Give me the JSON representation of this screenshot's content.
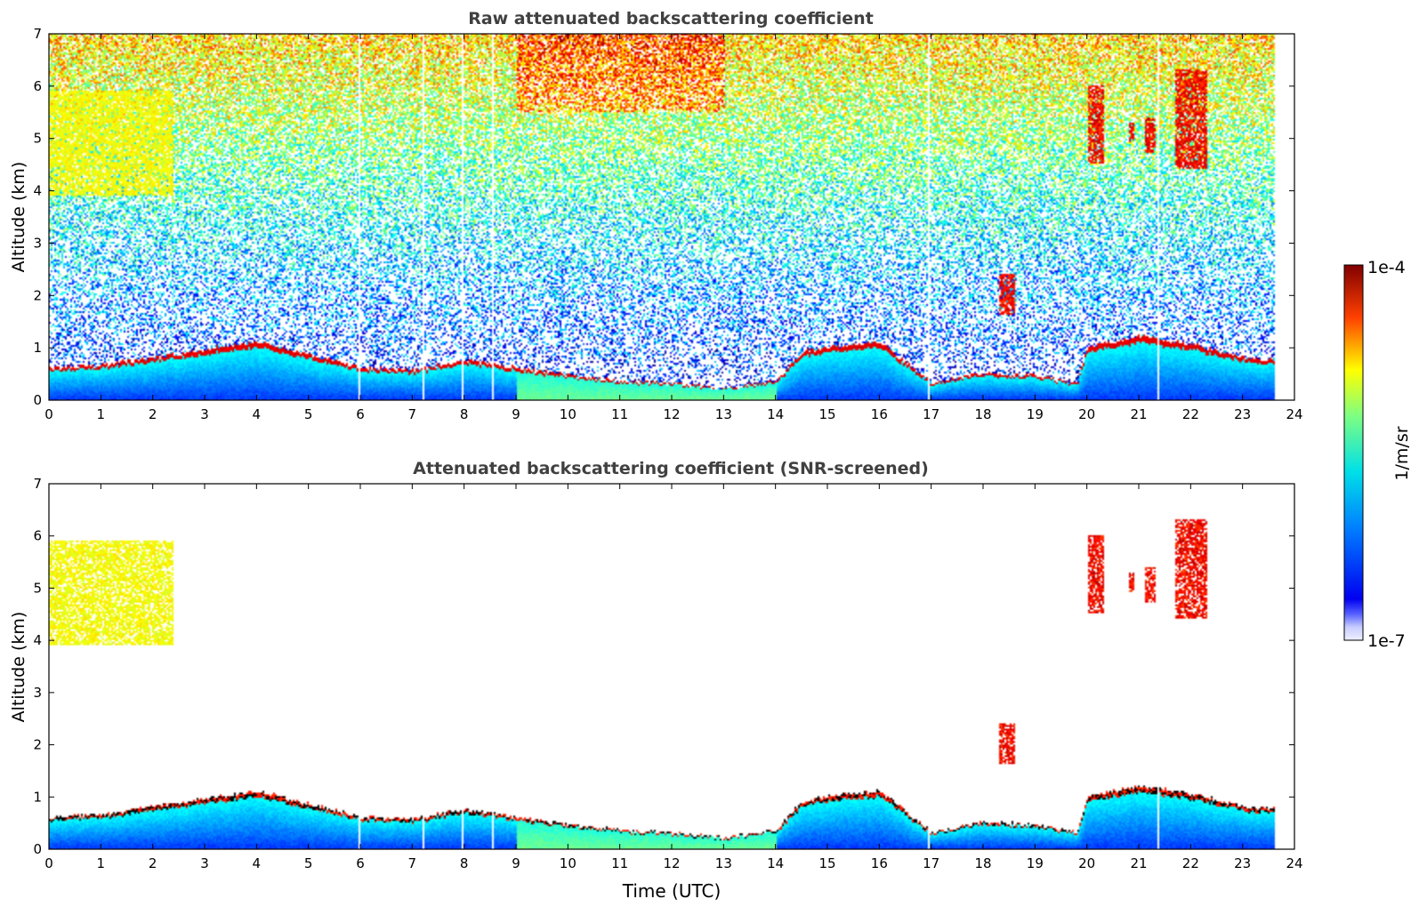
{
  "chart_data": [
    {
      "type": "heatmap",
      "title": "Raw attenuated backscattering coefficient",
      "xlabel": "",
      "ylabel": "Altitude (km)",
      "xlim": [
        0,
        24
      ],
      "ylim": [
        0,
        7
      ],
      "x_ticks": [
        "0",
        "1",
        "2",
        "3",
        "4",
        "5",
        "6",
        "7",
        "8",
        "9",
        "10",
        "11",
        "12",
        "13",
        "14",
        "15",
        "16",
        "17",
        "18",
        "19",
        "20",
        "21",
        "22",
        "23",
        "24"
      ],
      "y_ticks": [
        "0",
        "1",
        "2",
        "3",
        "4",
        "5",
        "6",
        "7"
      ],
      "data_end_hour": 23.6,
      "features": {
        "boundary_layer_top_km": [
          [
            0,
            0.6
          ],
          [
            1,
            0.65
          ],
          [
            2,
            0.8
          ],
          [
            3,
            0.95
          ],
          [
            4,
            1.1
          ],
          [
            5,
            0.85
          ],
          [
            6,
            0.6
          ],
          [
            7,
            0.55
          ],
          [
            8,
            0.75
          ],
          [
            9,
            0.6
          ],
          [
            10,
            0.45
          ],
          [
            11,
            0.35
          ],
          [
            12,
            0.3
          ],
          [
            13,
            0.2
          ],
          [
            14,
            0.35
          ],
          [
            14.5,
            0.9
          ],
          [
            15,
            1.0
          ],
          [
            16,
            1.1
          ],
          [
            17,
            0.3
          ],
          [
            18,
            0.5
          ],
          [
            19,
            0.45
          ],
          [
            19.8,
            0.3
          ],
          [
            20,
            1.0
          ],
          [
            21,
            1.2
          ],
          [
            22,
            1.05
          ],
          [
            23,
            0.8
          ],
          [
            23.6,
            0.75
          ]
        ],
        "cloud_columns": [
          {
            "x0": 0.0,
            "x1": 2.4,
            "bottom_km": 3.9,
            "top_km": 5.9,
            "level": "moderate"
          },
          {
            "x0": 18.3,
            "x1": 18.6,
            "bottom_km": 1.6,
            "top_km": 2.4,
            "level": "strong"
          },
          {
            "x0": 20.0,
            "x1": 20.3,
            "bottom_km": 4.5,
            "top_km": 6.0,
            "level": "strong"
          },
          {
            "x0": 20.8,
            "x1": 20.9,
            "bottom_km": 4.9,
            "top_km": 5.3,
            "level": "strong"
          },
          {
            "x0": 21.1,
            "x1": 21.3,
            "bottom_km": 4.7,
            "top_km": 5.4,
            "level": "strong"
          },
          {
            "x0": 21.7,
            "x1": 22.3,
            "bottom_km": 4.4,
            "top_km": 6.3,
            "level": "strong"
          }
        ],
        "gaps_hours": [
          5.95,
          7.2,
          7.95,
          8.55,
          16.95,
          21.35
        ]
      }
    },
    {
      "type": "heatmap",
      "title": "Attenuated backscattering coefficient (SNR-screened)",
      "xlabel": "Time (UTC)",
      "ylabel": "Altitude (km)",
      "xlim": [
        0,
        24
      ],
      "ylim": [
        0,
        7
      ],
      "x_ticks": [
        "0",
        "1",
        "2",
        "3",
        "4",
        "5",
        "6",
        "7",
        "8",
        "9",
        "10",
        "11",
        "12",
        "13",
        "14",
        "15",
        "16",
        "17",
        "18",
        "19",
        "20",
        "21",
        "22",
        "23",
        "24"
      ],
      "y_ticks": [
        "0",
        "1",
        "2",
        "3",
        "4",
        "5",
        "6",
        "7"
      ],
      "data_end_hour": 23.6
    }
  ],
  "colorbar": {
    "label": "1/m/sr",
    "max_label": "1e-4",
    "min_label": "1e-7",
    "colormap": "jet",
    "scale": "log",
    "range": [
      1e-07,
      0.0001
    ]
  }
}
